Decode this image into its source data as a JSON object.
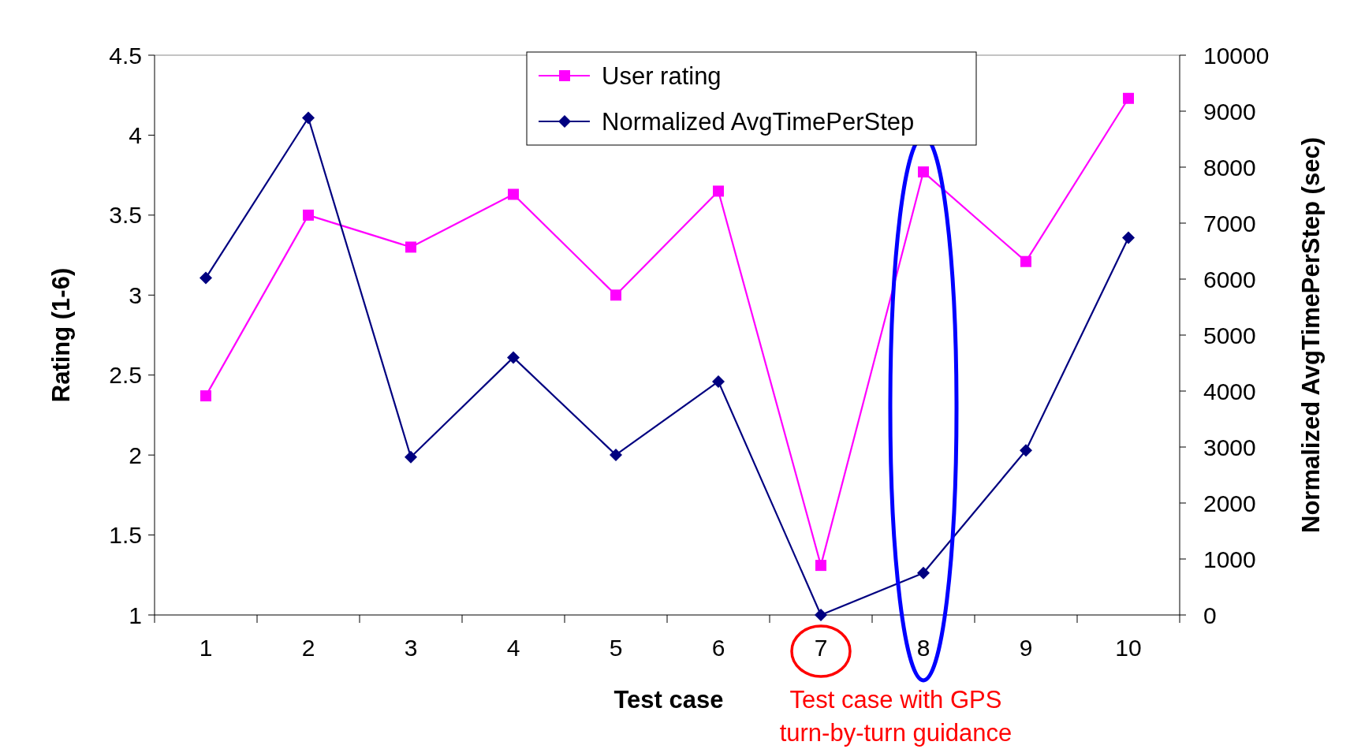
{
  "chart_data": {
    "type": "line",
    "xlabel": "Test case",
    "ylabel": "Rating (1-6)",
    "y2label": "Normalized AvgTimePerStep (sec)",
    "categories": [
      "1",
      "2",
      "3",
      "4",
      "5",
      "6",
      "7",
      "8",
      "9",
      "10"
    ],
    "series": [
      {
        "name": "User rating",
        "color": "#ff00ff",
        "marker": "square",
        "values": [
          2.37,
          3.5,
          3.3,
          3.63,
          3.0,
          3.65,
          1.31,
          3.77,
          3.21,
          4.23
        ]
      },
      {
        "name": "Normalized AvgTimePerStep",
        "color": "#000080",
        "marker": "diamond",
        "axis": "y2",
        "values": [
          6020,
          8880,
          2820,
          4600,
          2860,
          4170,
          0,
          750,
          2940,
          6740
        ]
      }
    ],
    "ylim": [
      1,
      4.5
    ],
    "yticks": [
      1,
      1.5,
      2,
      2.5,
      3,
      3.5,
      4,
      4.5
    ],
    "y2lim": [
      0,
      10000
    ],
    "y2ticks": [
      0,
      1000,
      2000,
      3000,
      4000,
      5000,
      6000,
      7000,
      8000,
      9000,
      10000
    ],
    "legend": "top",
    "grid": false,
    "annotations": [
      "Test case with GPS\nturn-by-turn guidance"
    ]
  }
}
